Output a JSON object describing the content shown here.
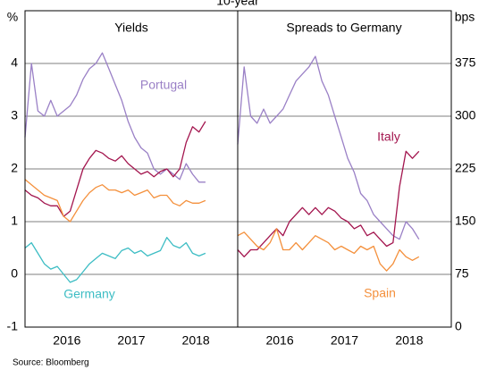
{
  "title": "10-year",
  "source": "Source:   Bloomberg",
  "chart_data": [
    {
      "type": "line",
      "title": "Yields",
      "y_label": "%",
      "x": [
        2015.85,
        2015.95,
        2016.05,
        2016.15,
        2016.25,
        2016.35,
        2016.45,
        2016.55,
        2016.65,
        2016.75,
        2016.85,
        2016.95,
        2017.05,
        2017.15,
        2017.25,
        2017.35,
        2017.45,
        2017.55,
        2017.65,
        2017.75,
        2017.85,
        2017.95,
        2018.05,
        2018.15,
        2018.25,
        2018.35,
        2018.45,
        2018.55,
        2018.65
      ],
      "xlim": [
        2015.85,
        2019.15
      ],
      "xticks": [
        {
          "value": 2016.5,
          "label": "2016"
        },
        {
          "value": 2017.5,
          "label": "2017"
        },
        {
          "value": 2018.5,
          "label": "2018"
        }
      ],
      "ylim": [
        -1,
        5
      ],
      "yticks": [
        -1,
        0,
        1,
        2,
        3,
        4
      ],
      "grid": true,
      "series": [
        {
          "name": "Portugal",
          "color": "#9a80c6",
          "values": [
            2.6,
            4.0,
            3.1,
            3.0,
            3.3,
            3.0,
            3.1,
            3.2,
            3.4,
            3.7,
            3.9,
            4.0,
            4.2,
            3.9,
            3.6,
            3.3,
            2.9,
            2.6,
            2.4,
            2.3,
            2.0,
            1.9,
            2.0,
            1.9,
            1.8,
            2.1,
            1.9,
            1.75,
            1.75
          ]
        },
        {
          "color": "#a3154e",
          "values": [
            1.6,
            1.5,
            1.45,
            1.35,
            1.3,
            1.3,
            1.1,
            1.2,
            1.6,
            2.0,
            2.2,
            2.35,
            2.3,
            2.2,
            2.15,
            2.25,
            2.1,
            2.0,
            1.9,
            1.95,
            1.85,
            1.95,
            2.0,
            1.85,
            2.0,
            2.5,
            2.8,
            2.7,
            2.9
          ]
        },
        {
          "color": "#f4903c",
          "values": [
            1.8,
            1.7,
            1.6,
            1.5,
            1.45,
            1.4,
            1.1,
            1.0,
            1.2,
            1.4,
            1.55,
            1.65,
            1.7,
            1.6,
            1.6,
            1.55,
            1.6,
            1.5,
            1.55,
            1.6,
            1.45,
            1.5,
            1.5,
            1.35,
            1.3,
            1.4,
            1.35,
            1.35,
            1.4
          ]
        },
        {
          "name": "Germany",
          "color": "#3dbdc4",
          "values": [
            0.5,
            0.6,
            0.4,
            0.2,
            0.1,
            0.15,
            0.0,
            -0.15,
            -0.1,
            0.05,
            0.2,
            0.3,
            0.4,
            0.35,
            0.3,
            0.45,
            0.5,
            0.4,
            0.45,
            0.35,
            0.4,
            0.45,
            0.7,
            0.55,
            0.5,
            0.6,
            0.4,
            0.35,
            0.4
          ]
        }
      ]
    },
    {
      "type": "line",
      "title": "Spreads to Germany",
      "y2_label": "bps",
      "x": [
        2015.85,
        2015.95,
        2016.05,
        2016.15,
        2016.25,
        2016.35,
        2016.45,
        2016.55,
        2016.65,
        2016.75,
        2016.85,
        2016.95,
        2017.05,
        2017.15,
        2017.25,
        2017.35,
        2017.45,
        2017.55,
        2017.65,
        2017.75,
        2017.85,
        2017.95,
        2018.05,
        2018.15,
        2018.25,
        2018.35,
        2018.45,
        2018.55,
        2018.65
      ],
      "xlim": [
        2015.85,
        2019.15
      ],
      "xticks": [
        {
          "value": 2016.5,
          "label": "2016"
        },
        {
          "value": 2017.5,
          "label": "2017"
        },
        {
          "value": 2018.5,
          "label": "2018"
        }
      ],
      "y2lim": [
        0,
        450
      ],
      "y2ticks": [
        0,
        75,
        150,
        225,
        300,
        375
      ],
      "grid": true,
      "series": [
        {
          "color": "#9a80c6",
          "axis": "y2",
          "values": [
            260,
            370,
            300,
            290,
            310,
            290,
            300,
            310,
            330,
            350,
            360,
            370,
            385,
            350,
            330,
            300,
            270,
            240,
            220,
            190,
            180,
            160,
            150,
            140,
            130,
            125,
            150,
            140,
            125
          ]
        },
        {
          "name": "Italy",
          "color": "#a3154e",
          "axis": "y2",
          "values": [
            110,
            100,
            110,
            110,
            120,
            130,
            140,
            130,
            150,
            160,
            170,
            160,
            170,
            160,
            170,
            165,
            155,
            150,
            140,
            145,
            130,
            135,
            125,
            115,
            120,
            200,
            250,
            240,
            250
          ]
        },
        {
          "name": "Spain",
          "color": "#f4903c",
          "axis": "y2",
          "values": [
            130,
            135,
            125,
            115,
            110,
            120,
            140,
            110,
            110,
            120,
            110,
            120,
            130,
            125,
            120,
            110,
            115,
            110,
            105,
            115,
            110,
            115,
            90,
            80,
            90,
            110,
            100,
            95,
            100
          ]
        }
      ]
    }
  ]
}
